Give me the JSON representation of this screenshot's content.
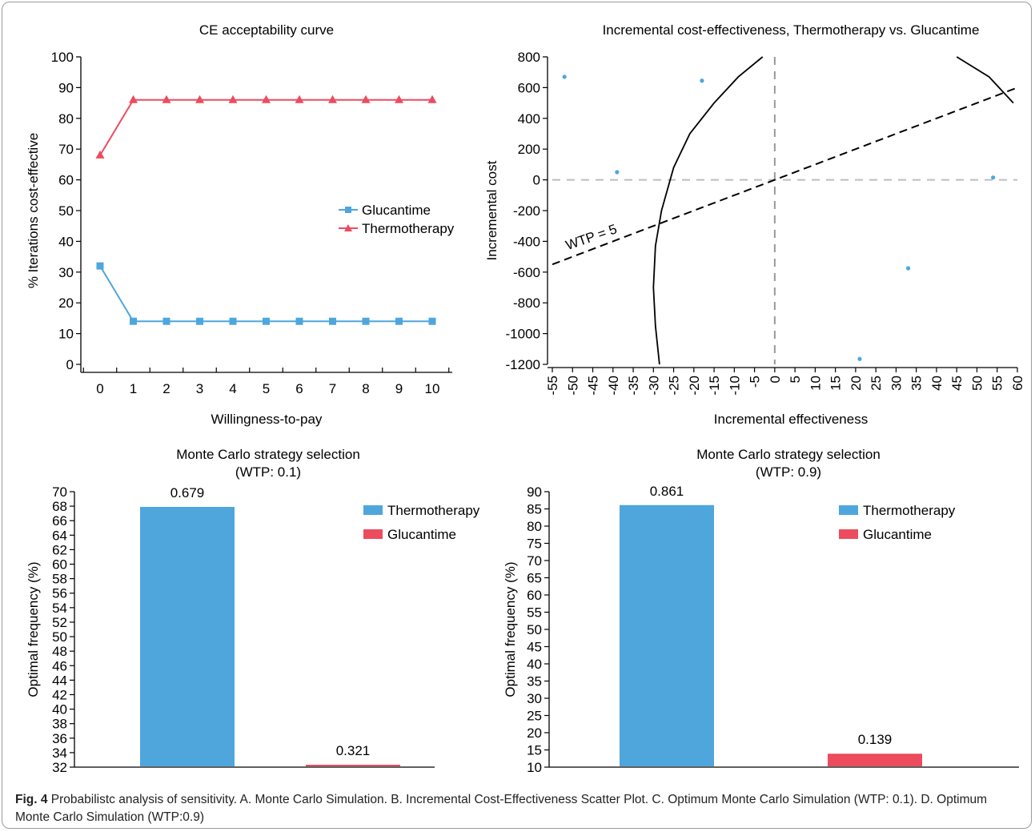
{
  "colors": {
    "blue": "#4ea6dc",
    "red": "#ec4c5e",
    "axis": "#000000",
    "dashed": "#999999"
  },
  "caption": {
    "label": "Fig. 4",
    "text": " Probabilistc analysis of sensitivity. A. Monte Carlo Simulation. B. Incremental Cost-Effectiveness Scatter Plot. C. Optimum Monte Carlo Simulation (WTP: 0.1). D. Optimum Monte Carlo Simulation (WTP:0.9)"
  },
  "chart_data": [
    {
      "type": "line",
      "title": "CE acceptability curve",
      "xlabel": "Willingness-to-pay",
      "ylabel": "% Iterations cost-effective",
      "x": [
        0,
        1,
        2,
        3,
        4,
        5,
        6,
        7,
        8,
        9,
        10
      ],
      "xlim": [
        0,
        10
      ],
      "ylim": [
        0,
        100
      ],
      "yticks": [
        0,
        10,
        20,
        30,
        40,
        50,
        60,
        70,
        80,
        90,
        100
      ],
      "legend_position": "right",
      "series": [
        {
          "name": "Glucantime",
          "marker": "square",
          "values": [
            32,
            14,
            14,
            14,
            14,
            14,
            14,
            14,
            14,
            14,
            14
          ]
        },
        {
          "name": "Thermotherapy",
          "marker": "triangle",
          "values": [
            68,
            86,
            86,
            86,
            86,
            86,
            86,
            86,
            86,
            86,
            86
          ]
        }
      ]
    },
    {
      "type": "scatter",
      "title": "Incremental cost-effectiveness, Thermotherapy vs. Glucantime",
      "xlabel": "Incremental effectiveness",
      "ylabel": "Incremental cost",
      "xlim": [
        -55,
        60
      ],
      "ylim": [
        -1200,
        800
      ],
      "xticks": [
        -55,
        -50,
        -45,
        -40,
        -35,
        -30,
        -25,
        -20,
        -15,
        -10,
        -5,
        0,
        5,
        10,
        15,
        20,
        25,
        30,
        35,
        40,
        45,
        50,
        55,
        60
      ],
      "yticks": [
        800,
        600,
        400,
        200,
        0,
        -200,
        -400,
        -600,
        -800,
        -1000,
        -1200
      ],
      "points": [
        {
          "x": -52,
          "y": 670
        },
        {
          "x": -18,
          "y": 645
        },
        {
          "x": -39,
          "y": 50
        },
        {
          "x": 54,
          "y": 15
        },
        {
          "x": 33,
          "y": -575
        },
        {
          "x": 21,
          "y": -1165
        }
      ],
      "wtp_line": {
        "label": "WTP = 5",
        "slope": 10
      },
      "ellipse_left": [
        [
          -3,
          800
        ],
        [
          -9,
          670
        ],
        [
          -15,
          500
        ],
        [
          -21,
          300
        ],
        [
          -25,
          80
        ],
        [
          -28,
          -200
        ],
        [
          -29.5,
          -430
        ],
        [
          -30,
          -700
        ],
        [
          -29.5,
          -950
        ],
        [
          -28.5,
          -1200
        ]
      ],
      "ellipse_right": [
        [
          45,
          800
        ],
        [
          53,
          670
        ],
        [
          59,
          500
        ]
      ]
    },
    {
      "type": "bar",
      "title": "Monte Carlo strategy selection",
      "subtitle": "(WTP: 0.1)",
      "ylabel": "Optimal frequency (%)",
      "categories": [
        "Thermotherapy",
        "Glucantime"
      ],
      "values": [
        67.9,
        32.1
      ],
      "data_labels": [
        "0.679",
        "0.321"
      ],
      "ylim": [
        32,
        70
      ],
      "yticks": [
        32,
        34,
        36,
        38,
        40,
        42,
        44,
        46,
        48,
        50,
        52,
        54,
        56,
        58,
        60,
        62,
        64,
        66,
        68,
        70
      ],
      "legend_position": "top-right",
      "legend": [
        "Thermotherapy",
        "Glucantime"
      ]
    },
    {
      "type": "bar",
      "title": "Monte Carlo strategy selection",
      "subtitle": "(WTP: 0.9)",
      "ylabel": "Optimal frequency (%)",
      "categories": [
        "Thermotherapy",
        "Glucantime"
      ],
      "values": [
        86.1,
        13.9
      ],
      "data_labels": [
        "0.861",
        "0.139"
      ],
      "ylim": [
        10,
        90
      ],
      "yticks": [
        10,
        15,
        20,
        25,
        30,
        35,
        40,
        45,
        50,
        55,
        60,
        65,
        70,
        75,
        80,
        85,
        90
      ],
      "legend_position": "top-right",
      "legend": [
        "Thermotherapy",
        "Glucantime"
      ]
    }
  ]
}
